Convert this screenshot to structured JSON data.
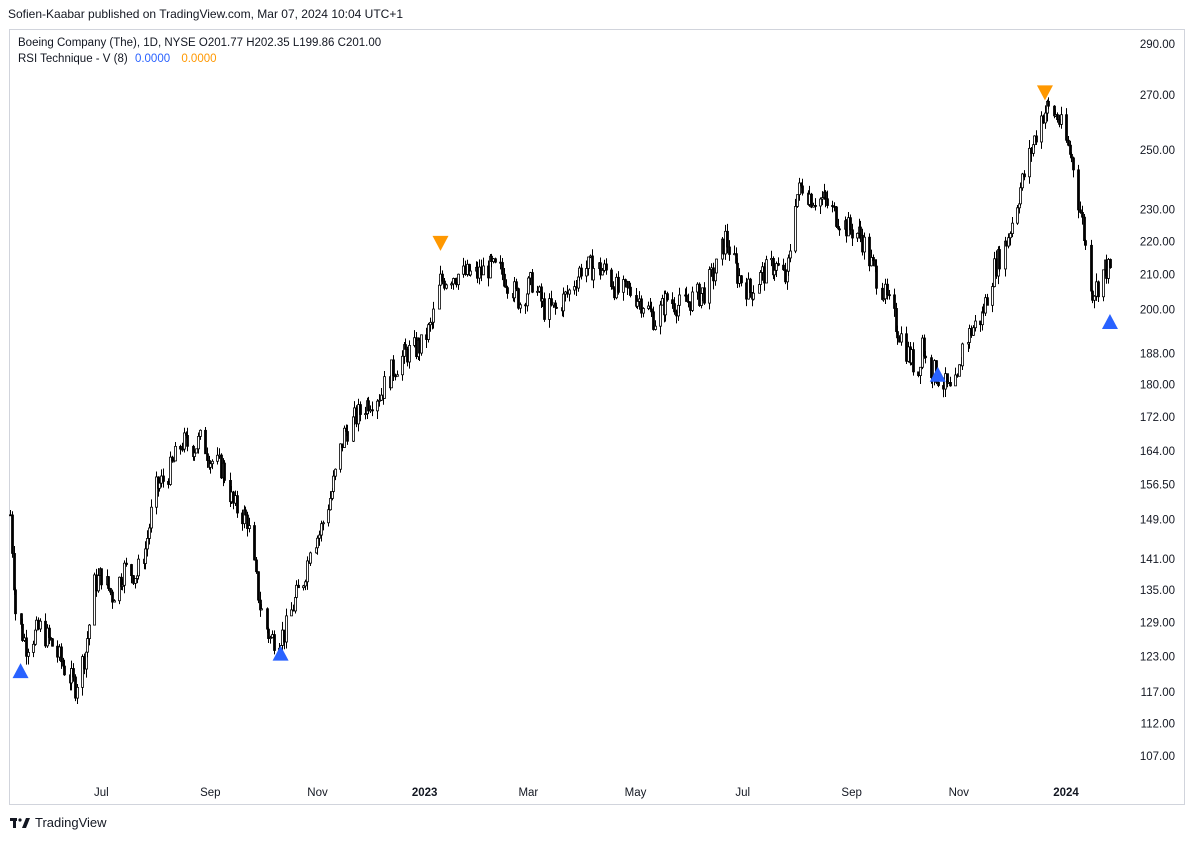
{
  "header": {
    "published": "Sofien-Kaabar published on TradingView.com, Mar 07, 2024 10:04 UTC+1"
  },
  "legend": {
    "symbol_line": "Boeing Company (The), 1D, NYSE  O201.77  H202.35  L199.86  C201.00",
    "indicator_name": "RSI Technique - V (8)",
    "indicator_value_1": "0.0000",
    "indicator_value_2": "0.0000"
  },
  "footer": {
    "brand": "TradingView"
  },
  "colors": {
    "buy": "#2962ff",
    "sell": "#ff9800",
    "candle": "#000000",
    "axis_text": "#131722"
  },
  "chart_data": {
    "type": "line",
    "title": "Boeing Company (The), 1D, NYSE",
    "scale": "log",
    "y_ticks": [
      "290.00",
      "270.00",
      "250.00",
      "230.00",
      "220.00",
      "210.00",
      "200.00",
      "188.00",
      "180.00",
      "172.00",
      "164.00",
      "156.50",
      "149.00",
      "141.00",
      "135.00",
      "129.00",
      "123.00",
      "117.00",
      "112.00",
      "107.00"
    ],
    "x_ticks": [
      {
        "label": "Jul",
        "bold": false
      },
      {
        "label": "Sep",
        "bold": false
      },
      {
        "label": "Nov",
        "bold": false
      },
      {
        "label": "2023",
        "bold": true
      },
      {
        "label": "Mar",
        "bold": false
      },
      {
        "label": "May",
        "bold": false
      },
      {
        "label": "Jul",
        "bold": false
      },
      {
        "label": "Sep",
        "bold": false
      },
      {
        "label": "Nov",
        "bold": false
      },
      {
        "label": "2024",
        "bold": true
      }
    ],
    "x_tick_dates": [
      "2022-07-01",
      "2022-09-01",
      "2022-11-01",
      "2023-01-01",
      "2023-03-01",
      "2023-05-01",
      "2023-07-01",
      "2023-09-01",
      "2023-11-01",
      "2024-01-01"
    ],
    "x_range": [
      "2022-05-10",
      "2024-03-07"
    ],
    "ylim": [
      103,
      300
    ],
    "price_path": [
      [
        "2022-05-10",
        150
      ],
      [
        "2022-05-13",
        131
      ],
      [
        "2022-05-19",
        125
      ],
      [
        "2022-05-27",
        128
      ],
      [
        "2022-06-03",
        125
      ],
      [
        "2022-06-10",
        121
      ],
      [
        "2022-06-16",
        118
      ],
      [
        "2022-06-22",
        124
      ],
      [
        "2022-06-27",
        136
      ],
      [
        "2022-07-01",
        138
      ],
      [
        "2022-07-07",
        134
      ],
      [
        "2022-07-14",
        139
      ],
      [
        "2022-07-21",
        138
      ],
      [
        "2022-07-26",
        143
      ],
      [
        "2022-07-31",
        155
      ],
      [
        "2022-08-08",
        159
      ],
      [
        "2022-08-16",
        166
      ],
      [
        "2022-08-23",
        165
      ],
      [
        "2022-08-27",
        167
      ],
      [
        "2022-09-01",
        162
      ],
      [
        "2022-09-08",
        160
      ],
      [
        "2022-09-14",
        152
      ],
      [
        "2022-09-22",
        149
      ],
      [
        "2022-09-29",
        132
      ],
      [
        "2022-10-05",
        126
      ],
      [
        "2022-10-13",
        127
      ],
      [
        "2022-10-19",
        133
      ],
      [
        "2022-10-24",
        137
      ],
      [
        "2022-10-28",
        144
      ],
      [
        "2022-11-02",
        146
      ],
      [
        "2022-11-09",
        155
      ],
      [
        "2022-11-16",
        168
      ],
      [
        "2022-11-23",
        172
      ],
      [
        "2022-11-30",
        176
      ],
      [
        "2022-12-07",
        178
      ],
      [
        "2022-12-14",
        184
      ],
      [
        "2022-12-21",
        188
      ],
      [
        "2022-12-30",
        190
      ],
      [
        "2023-01-05",
        196
      ],
      [
        "2023-01-10",
        208
      ],
      [
        "2023-01-17",
        210
      ],
      [
        "2023-01-24",
        210
      ],
      [
        "2023-01-31",
        210
      ],
      [
        "2023-02-06",
        212
      ],
      [
        "2023-02-13",
        211
      ],
      [
        "2023-02-20",
        206
      ],
      [
        "2023-02-24",
        202
      ],
      [
        "2023-03-03",
        208
      ],
      [
        "2023-03-10",
        200
      ],
      [
        "2023-03-17",
        200
      ],
      [
        "2023-03-24",
        205
      ],
      [
        "2023-03-31",
        212
      ],
      [
        "2023-04-07",
        212
      ],
      [
        "2023-04-14",
        211
      ],
      [
        "2023-04-21",
        205
      ],
      [
        "2023-04-28",
        205
      ],
      [
        "2023-05-05",
        202
      ],
      [
        "2023-05-12",
        197
      ],
      [
        "2023-05-19",
        203
      ],
      [
        "2023-05-26",
        201
      ],
      [
        "2023-06-02",
        203
      ],
      [
        "2023-06-09",
        205
      ],
      [
        "2023-06-16",
        212
      ],
      [
        "2023-06-21",
        221
      ],
      [
        "2023-06-28",
        210
      ],
      [
        "2023-07-05",
        205
      ],
      [
        "2023-07-12",
        210
      ],
      [
        "2023-07-19",
        213
      ],
      [
        "2023-07-26",
        208
      ],
      [
        "2023-07-31",
        234
      ],
      [
        "2023-08-04",
        238
      ],
      [
        "2023-08-09",
        234
      ],
      [
        "2023-08-16",
        233
      ],
      [
        "2023-08-23",
        228
      ],
      [
        "2023-08-30",
        224
      ],
      [
        "2023-09-06",
        222
      ],
      [
        "2023-09-12",
        213
      ],
      [
        "2023-09-19",
        205
      ],
      [
        "2023-09-26",
        196
      ],
      [
        "2023-10-03",
        188
      ],
      [
        "2023-10-09",
        183
      ],
      [
        "2023-10-11",
        192
      ],
      [
        "2023-10-13",
        186
      ],
      [
        "2023-10-20",
        182
      ],
      [
        "2023-10-27",
        178
      ],
      [
        "2023-10-31",
        180
      ],
      [
        "2023-11-03",
        190
      ],
      [
        "2023-11-09",
        195
      ],
      [
        "2023-11-14",
        198
      ],
      [
        "2023-11-21",
        212
      ],
      [
        "2023-11-28",
        220
      ],
      [
        "2023-12-05",
        235
      ],
      [
        "2023-12-12",
        250
      ],
      [
        "2023-12-18",
        262
      ],
      [
        "2023-12-21",
        265
      ],
      [
        "2023-12-27",
        262
      ],
      [
        "2024-01-03",
        249
      ],
      [
        "2024-01-05",
        245
      ],
      [
        "2024-01-08",
        233
      ],
      [
        "2024-01-10",
        226
      ],
      [
        "2024-01-12",
        218
      ],
      [
        "2024-01-16",
        205
      ],
      [
        "2024-01-19",
        207
      ],
      [
        "2024-01-23",
        212
      ],
      [
        "2024-01-26",
        211
      ]
    ],
    "signals": [
      {
        "date": "2022-05-16",
        "price": 120.5,
        "type": "buy"
      },
      {
        "date": "2022-10-11",
        "price": 123.5,
        "type": "buy"
      },
      {
        "date": "2023-01-10",
        "price": 219.5,
        "type": "sell"
      },
      {
        "date": "2023-10-20",
        "price": 182.5,
        "type": "buy"
      },
      {
        "date": "2023-12-20",
        "price": 271.0,
        "type": "sell"
      },
      {
        "date": "2024-01-26",
        "price": 196.5,
        "type": "buy"
      }
    ]
  }
}
